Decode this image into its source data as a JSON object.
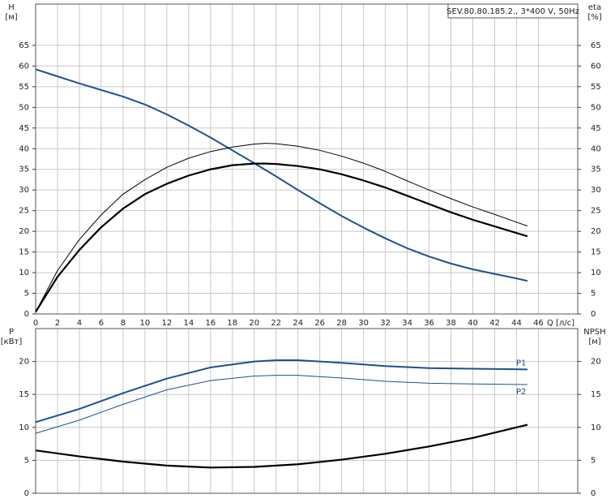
{
  "chart_data": [
    {
      "type": "line",
      "info_box": "SEV.80.80.185.2., 3*400 V, 50Hz",
      "y_label": "H",
      "y_unit": "[м]",
      "y2_label": "eta",
      "y2_unit": "[%]",
      "x_label": "Q [л/с]",
      "xlim": [
        0,
        49.6
      ],
      "xticks": [
        0,
        2,
        4,
        6,
        8,
        10,
        12,
        14,
        16,
        18,
        20,
        22,
        24,
        26,
        28,
        30,
        32,
        34,
        36,
        38,
        40,
        42,
        44,
        46
      ],
      "xtick_labels": true,
      "ylim": [
        0,
        75
      ],
      "yticks": [
        0,
        5,
        10,
        15,
        20,
        25,
        30,
        35,
        40,
        45,
        50,
        55,
        60,
        65
      ],
      "y2lim": [
        0,
        75
      ],
      "y2ticks": [
        0,
        5,
        10,
        15,
        20,
        25,
        30,
        35,
        40,
        45,
        50,
        55,
        60,
        65
      ],
      "grid": true,
      "series": [
        {
          "color": "#1f4f8f",
          "line_width": 2,
          "x": [
            0,
            2,
            4,
            6,
            8,
            10,
            12,
            14,
            16,
            18,
            20,
            22,
            24,
            26,
            28,
            30,
            32,
            34,
            36,
            38,
            40,
            42,
            44,
            45
          ],
          "values": [
            59.2,
            57.5,
            55.8,
            54.2,
            52.6,
            50.7,
            48.3,
            45.6,
            42.7,
            39.6,
            36.5,
            33.3,
            30.0,
            26.8,
            23.7,
            20.9,
            18.3,
            15.9,
            13.9,
            12.2,
            10.8,
            9.7,
            8.6,
            8.0
          ]
        },
        {
          "color": "#000000",
          "line_width": 2.2,
          "axis": "y2",
          "x": [
            0,
            2,
            4,
            6,
            8,
            10,
            12,
            14,
            16,
            18,
            20,
            21,
            22,
            24,
            26,
            28,
            30,
            32,
            34,
            36,
            38,
            40,
            42,
            44,
            45
          ],
          "values": [
            0.5,
            9,
            15.5,
            21,
            25.5,
            29,
            31.5,
            33.5,
            35,
            36,
            36.4,
            36.4,
            36.3,
            35.8,
            35,
            33.8,
            32.3,
            30.6,
            28.6,
            26.6,
            24.6,
            22.8,
            21.2,
            19.6,
            18.8
          ]
        },
        {
          "color": "#000000",
          "line_width": 1,
          "axis": "y2",
          "x": [
            0,
            2,
            4,
            6,
            8,
            10,
            12,
            14,
            16,
            18,
            20,
            21,
            22,
            24,
            26,
            28,
            30,
            32,
            34,
            36,
            38,
            40,
            42,
            44,
            45
          ],
          "values": [
            0.5,
            10.5,
            18,
            24,
            29,
            32.5,
            35.5,
            37.7,
            39.3,
            40.4,
            41.1,
            41.3,
            41.2,
            40.6,
            39.6,
            38.2,
            36.5,
            34.5,
            32.2,
            30,
            27.9,
            25.9,
            24.1,
            22.2,
            21.3
          ]
        }
      ]
    },
    {
      "type": "line",
      "y_label": "P",
      "y_unit": "[кВт]",
      "y2_label": "NPSH",
      "y2_unit": "[м]",
      "xlim": [
        0,
        49.6
      ],
      "xticks": [
        0,
        2,
        4,
        6,
        8,
        10,
        12,
        14,
        16,
        18,
        20,
        22,
        24,
        26,
        28,
        30,
        32,
        34,
        36,
        38,
        40,
        42,
        44,
        46
      ],
      "xtick_labels": false,
      "ylim": [
        0,
        25
      ],
      "yticks": [
        0,
        5,
        10,
        15,
        20
      ],
      "y2lim": [
        0,
        25
      ],
      "y2ticks": [
        0,
        5,
        10,
        15,
        20
      ],
      "grid": true,
      "series": [
        {
          "name": "P1",
          "color": "#1f4f8f",
          "line_width": 2,
          "x": [
            0,
            4,
            8,
            12,
            16,
            20,
            22,
            24,
            28,
            32,
            36,
            40,
            45
          ],
          "values": [
            10.8,
            12.8,
            15.2,
            17.4,
            19.1,
            20.0,
            20.2,
            20.2,
            19.8,
            19.3,
            19.0,
            18.9,
            18.8
          ]
        },
        {
          "name": "P2",
          "color": "#1f4f8f",
          "line_width": 1,
          "x": [
            0,
            4,
            8,
            12,
            16,
            20,
            22,
            24,
            28,
            32,
            36,
            40,
            45
          ],
          "values": [
            9.1,
            11.1,
            13.5,
            15.7,
            17.1,
            17.8,
            17.9,
            17.9,
            17.5,
            17.0,
            16.7,
            16.6,
            16.5
          ]
        },
        {
          "color": "#000000",
          "line_width": 2.2,
          "axis": "y2",
          "x": [
            0,
            4,
            8,
            12,
            16,
            20,
            24,
            28,
            32,
            36,
            40,
            45
          ],
          "values": [
            6.5,
            5.6,
            4.8,
            4.2,
            3.9,
            4.0,
            4.4,
            5.1,
            6.0,
            7.1,
            8.4,
            10.4
          ]
        }
      ]
    }
  ]
}
